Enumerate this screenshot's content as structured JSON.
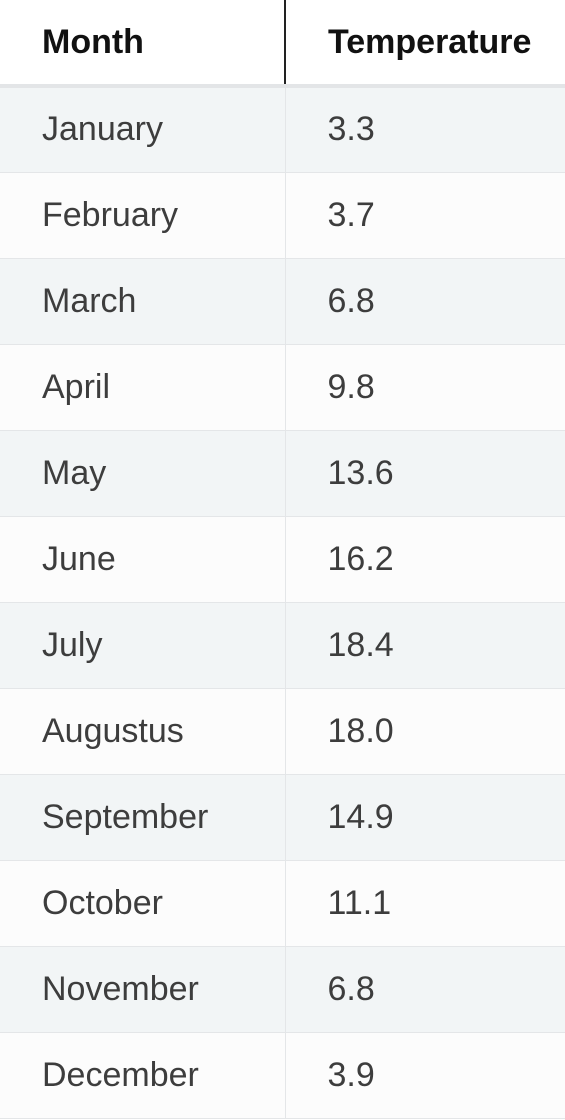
{
  "table": {
    "headers": [
      "Month",
      "Temperature"
    ],
    "rows": [
      {
        "month": "January",
        "temperature": "3.3"
      },
      {
        "month": "February",
        "temperature": "3.7"
      },
      {
        "month": "March",
        "temperature": "6.8"
      },
      {
        "month": "April",
        "temperature": "9.8"
      },
      {
        "month": "May",
        "temperature": "13.6"
      },
      {
        "month": "June",
        "temperature": "16.2"
      },
      {
        "month": "July",
        "temperature": "18.4"
      },
      {
        "month": "Augustus",
        "temperature": "18.0"
      },
      {
        "month": "September",
        "temperature": "14.9"
      },
      {
        "month": "October",
        "temperature": "11.1"
      },
      {
        "month": "November",
        "temperature": "6.8"
      },
      {
        "month": "December",
        "temperature": "3.9"
      }
    ]
  }
}
